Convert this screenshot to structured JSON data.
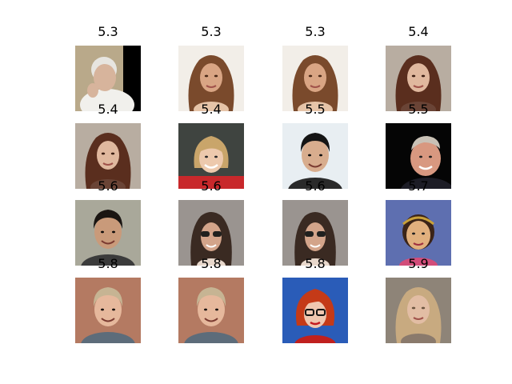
{
  "grid": {
    "rows": 4,
    "columns": 4,
    "images": [
      {
        "score": "5.3",
        "subject": "elderly man with white hair wearing white robe",
        "palette": {
          "bg": "#b9a98a",
          "hair": "#e7e5e0",
          "skin": "#d7b49c",
          "clothes": "#f1f0ec",
          "dark": "#000000"
        },
        "variant": "elder"
      },
      {
        "score": "5.3",
        "subject": "woman with long brown wavy hair",
        "palette": {
          "bg": "#f2eee8",
          "hair": "#7a4a2c",
          "skin": "#d9a584",
          "clothes": "#e6c4a8",
          "dark": "#4a2a18"
        },
        "variant": "longhair"
      },
      {
        "score": "5.3",
        "subject": "woman with long brown wavy hair",
        "palette": {
          "bg": "#f2eee8",
          "hair": "#7a4a2c",
          "skin": "#d9a584",
          "clothes": "#e6c4a8",
          "dark": "#4a2a18"
        },
        "variant": "longhair"
      },
      {
        "score": "5.4",
        "subject": "woman with dark auburn hair",
        "palette": {
          "bg": "#b8ada1",
          "hair": "#5a2e1e",
          "skin": "#e0b89e",
          "clothes": "#6a4436",
          "dark": "#3a1d12"
        },
        "variant": "longhair"
      },
      {
        "score": "5.4",
        "subject": "woman with dark auburn hair",
        "palette": {
          "bg": "#b8ada1",
          "hair": "#5a2e1e",
          "skin": "#e0b89e",
          "clothes": "#6a4436",
          "dark": "#3a1d12"
        },
        "variant": "longhair"
      },
      {
        "score": "5.4",
        "subject": "smiling woman with blonde hair in red jacket",
        "palette": {
          "bg": "#3f4440",
          "hair": "#c9a56a",
          "skin": "#edc9ad",
          "clothes": "#c8282b",
          "dark": "#1f2320"
        },
        "variant": "bob"
      },
      {
        "score": "5.5",
        "subject": "man with dark curly hair",
        "palette": {
          "bg": "#e8eef2",
          "hair": "#151515",
          "skin": "#d8ad8e",
          "clothes": "#2a2a2a",
          "dark": "#0d0d0d"
        },
        "variant": "short"
      },
      {
        "score": "5.5",
        "subject": "older man smiling on black background",
        "palette": {
          "bg": "#050505",
          "hair": "#c9c1b6",
          "skin": "#d89880",
          "clothes": "#1d1d26",
          "dark": "#000000"
        },
        "variant": "profile"
      },
      {
        "score": "5.6",
        "subject": "smiling young man with short dark hair",
        "palette": {
          "bg": "#a9a89a",
          "hair": "#1a1512",
          "skin": "#c99a7a",
          "clothes": "#3b3b3b",
          "dark": "#0f0c0a"
        },
        "variant": "short"
      },
      {
        "score": "5.6",
        "subject": "woman with sunglasses and dark hair",
        "palette": {
          "bg": "#9a9490",
          "hair": "#3a2a22",
          "skin": "#d3a48a",
          "clothes": "#e8d8cc",
          "dark": "#20201e"
        },
        "variant": "glasses"
      },
      {
        "score": "5.6",
        "subject": "woman with sunglasses and dark hair",
        "palette": {
          "bg": "#9a9490",
          "hair": "#3a2a22",
          "skin": "#d3a48a",
          "clothes": "#e8d8cc",
          "dark": "#20201e"
        },
        "variant": "glasses"
      },
      {
        "score": "5.7",
        "subject": "woman with headband on blue background",
        "palette": {
          "bg": "#5e6fb0",
          "hair": "#3b2418",
          "skin": "#e1b07e",
          "clothes": "#d24d7a",
          "dark": "#c9a13a"
        },
        "variant": "headband"
      },
      {
        "score": "5.8",
        "subject": "smiling man with light hair",
        "palette": {
          "bg": "#b47a62",
          "hair": "#c6b493",
          "skin": "#e6b89c",
          "clothes": "#5d6c7a",
          "dark": "#1a1210"
        },
        "variant": "short"
      },
      {
        "score": "5.8",
        "subject": "smiling man with light hair",
        "palette": {
          "bg": "#b47a62",
          "hair": "#c6b493",
          "skin": "#e6b89c",
          "clothes": "#5d6c7a",
          "dark": "#1a1210"
        },
        "variant": "short"
      },
      {
        "score": "5.8",
        "subject": "woman with red hair and glasses on blue background",
        "palette": {
          "bg": "#2a5cb8",
          "hair": "#c43a18",
          "skin": "#efc7b0",
          "clothes": "#c0201e",
          "dark": "#141414"
        },
        "variant": "redglasses"
      },
      {
        "score": "5.9",
        "subject": "woman with long blonde hair",
        "palette": {
          "bg": "#8e8478",
          "hair": "#c8aa80",
          "skin": "#e2bda4",
          "clothes": "#8a7a6c",
          "dark": "#6b5440"
        },
        "variant": "longhair"
      }
    ]
  }
}
